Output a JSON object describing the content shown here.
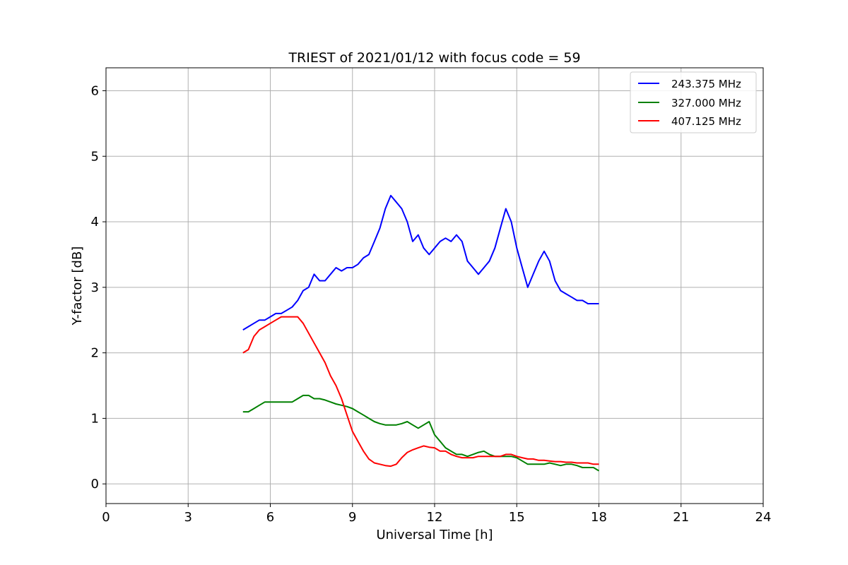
{
  "chart_data": {
    "type": "line",
    "title": "TRIEST of 2021/01/12 with focus code = 59",
    "xlabel": "Universal Time [h]",
    "ylabel": "Y-factor [dB]",
    "xlim": [
      0,
      24
    ],
    "ylim": [
      -0.3,
      6.35
    ],
    "xticks": [
      0,
      3,
      6,
      9,
      12,
      15,
      18,
      21,
      24
    ],
    "yticks": [
      0,
      1,
      2,
      3,
      4,
      5,
      6
    ],
    "grid": true,
    "legend_position": "top-right",
    "series": [
      {
        "name": "243.375 MHz",
        "color": "#0000ff",
        "x": [
          5.0,
          5.2,
          5.4,
          5.6,
          5.8,
          6.0,
          6.2,
          6.4,
          6.6,
          6.8,
          7.0,
          7.2,
          7.4,
          7.6,
          7.8,
          8.0,
          8.2,
          8.4,
          8.6,
          8.8,
          9.0,
          9.2,
          9.4,
          9.6,
          9.8,
          10.0,
          10.2,
          10.4,
          10.6,
          10.8,
          11.0,
          11.2,
          11.4,
          11.6,
          11.8,
          12.0,
          12.2,
          12.4,
          12.6,
          12.8,
          13.0,
          13.2,
          13.4,
          13.6,
          13.8,
          14.0,
          14.2,
          14.4,
          14.6,
          14.8,
          15.0,
          15.2,
          15.4,
          15.6,
          15.8,
          16.0,
          16.2,
          16.4,
          16.6,
          16.8,
          17.0,
          17.2,
          17.4,
          17.6,
          17.8,
          18.0
        ],
        "y": [
          2.35,
          2.4,
          2.45,
          2.5,
          2.5,
          2.55,
          2.6,
          2.6,
          2.65,
          2.7,
          2.8,
          2.95,
          3.0,
          3.2,
          3.1,
          3.1,
          3.2,
          3.3,
          3.25,
          3.3,
          3.3,
          3.35,
          3.45,
          3.5,
          3.7,
          3.9,
          4.2,
          4.4,
          4.3,
          4.2,
          4.0,
          3.7,
          3.8,
          3.6,
          3.5,
          3.6,
          3.7,
          3.75,
          3.7,
          3.8,
          3.7,
          3.4,
          3.3,
          3.2,
          3.3,
          3.4,
          3.6,
          3.9,
          4.2,
          4.0,
          3.6,
          3.3,
          3.0,
          3.2,
          3.4,
          3.55,
          3.4,
          3.1,
          2.95,
          2.9,
          2.85,
          2.8,
          2.8,
          2.75,
          2.75,
          2.75
        ]
      },
      {
        "name": "327.000 MHz",
        "color": "#008000",
        "x": [
          5.0,
          5.2,
          5.4,
          5.6,
          5.8,
          6.0,
          6.2,
          6.4,
          6.6,
          6.8,
          7.0,
          7.2,
          7.4,
          7.6,
          7.8,
          8.0,
          8.2,
          8.4,
          8.6,
          8.8,
          9.0,
          9.2,
          9.4,
          9.6,
          9.8,
          10.0,
          10.2,
          10.4,
          10.6,
          10.8,
          11.0,
          11.2,
          11.4,
          11.6,
          11.8,
          12.0,
          12.2,
          12.4,
          12.6,
          12.8,
          13.0,
          13.2,
          13.4,
          13.6,
          13.8,
          14.0,
          14.2,
          14.4,
          14.6,
          14.8,
          15.0,
          15.2,
          15.4,
          15.6,
          15.8,
          16.0,
          16.2,
          16.4,
          16.6,
          16.8,
          17.0,
          17.2,
          17.4,
          17.6,
          17.8,
          18.0
        ],
        "y": [
          1.1,
          1.1,
          1.15,
          1.2,
          1.25,
          1.25,
          1.25,
          1.25,
          1.25,
          1.25,
          1.3,
          1.35,
          1.35,
          1.3,
          1.3,
          1.28,
          1.25,
          1.22,
          1.2,
          1.18,
          1.15,
          1.1,
          1.05,
          1.0,
          0.95,
          0.92,
          0.9,
          0.9,
          0.9,
          0.92,
          0.95,
          0.9,
          0.85,
          0.9,
          0.95,
          0.75,
          0.65,
          0.55,
          0.5,
          0.45,
          0.45,
          0.42,
          0.45,
          0.48,
          0.5,
          0.45,
          0.42,
          0.42,
          0.42,
          0.42,
          0.4,
          0.35,
          0.3,
          0.3,
          0.3,
          0.3,
          0.32,
          0.3,
          0.28,
          0.3,
          0.3,
          0.28,
          0.25,
          0.25,
          0.25,
          0.2
        ]
      },
      {
        "name": "407.125 MHz",
        "color": "#ff0000",
        "x": [
          5.0,
          5.2,
          5.4,
          5.6,
          5.8,
          6.0,
          6.2,
          6.4,
          6.6,
          6.8,
          7.0,
          7.2,
          7.4,
          7.6,
          7.8,
          8.0,
          8.2,
          8.4,
          8.6,
          8.8,
          9.0,
          9.2,
          9.4,
          9.6,
          9.8,
          10.0,
          10.2,
          10.4,
          10.6,
          10.8,
          11.0,
          11.2,
          11.4,
          11.6,
          11.8,
          12.0,
          12.2,
          12.4,
          12.6,
          12.8,
          13.0,
          13.2,
          13.4,
          13.6,
          13.8,
          14.0,
          14.2,
          14.4,
          14.6,
          14.8,
          15.0,
          15.2,
          15.4,
          15.6,
          15.8,
          16.0,
          16.2,
          16.4,
          16.6,
          16.8,
          17.0,
          17.2,
          17.4,
          17.6,
          17.8,
          18.0
        ],
        "y": [
          2.0,
          2.05,
          2.25,
          2.35,
          2.4,
          2.45,
          2.5,
          2.55,
          2.55,
          2.55,
          2.55,
          2.45,
          2.3,
          2.15,
          2.0,
          1.85,
          1.65,
          1.5,
          1.3,
          1.05,
          0.8,
          0.65,
          0.5,
          0.38,
          0.32,
          0.3,
          0.28,
          0.27,
          0.3,
          0.4,
          0.48,
          0.52,
          0.55,
          0.58,
          0.56,
          0.55,
          0.5,
          0.5,
          0.45,
          0.42,
          0.4,
          0.4,
          0.4,
          0.42,
          0.42,
          0.42,
          0.42,
          0.42,
          0.45,
          0.45,
          0.42,
          0.4,
          0.38,
          0.38,
          0.36,
          0.36,
          0.35,
          0.34,
          0.34,
          0.33,
          0.33,
          0.32,
          0.32,
          0.32,
          0.3,
          0.3
        ]
      }
    ]
  }
}
